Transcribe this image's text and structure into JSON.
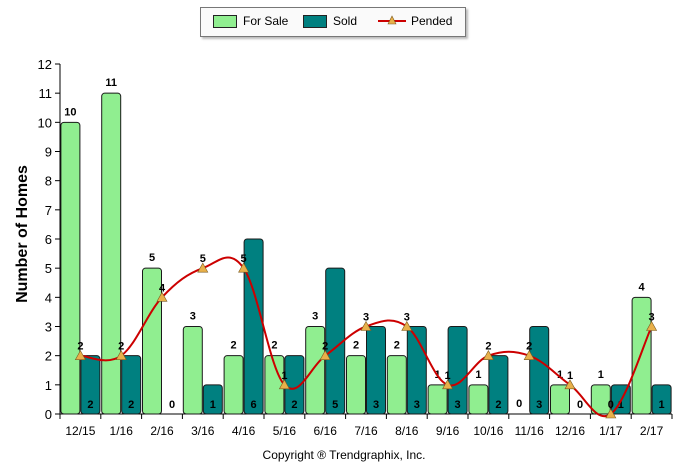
{
  "chart_data": {
    "type": "bar",
    "title": "",
    "xlabel": "",
    "ylabel": "Number of Homes",
    "ylim": [
      0,
      12
    ],
    "yticks": [
      0,
      1,
      2,
      3,
      4,
      5,
      6,
      7,
      8,
      9,
      10,
      11,
      12
    ],
    "categories": [
      "12/15",
      "1/16",
      "2/16",
      "3/16",
      "4/16",
      "5/16",
      "6/16",
      "7/16",
      "8/16",
      "9/16",
      "10/16",
      "11/16",
      "12/16",
      "1/17",
      "2/17"
    ],
    "series": [
      {
        "name": "For Sale",
        "type": "bar",
        "color": "#90ee90",
        "values": [
          10,
          11,
          5,
          3,
          2,
          2,
          3,
          2,
          2,
          1,
          1,
          0,
          1,
          1,
          4
        ]
      },
      {
        "name": "Sold",
        "type": "bar",
        "color": "#008080",
        "values": [
          2,
          2,
          0,
          1,
          6,
          2,
          5,
          3,
          3,
          3,
          2,
          3,
          0,
          1,
          1
        ]
      },
      {
        "name": "Pended",
        "type": "line",
        "color": "#cc0000",
        "marker_color": "#e8b04a",
        "values": [
          2,
          2,
          4,
          5,
          5,
          1,
          2,
          3,
          3,
          1,
          2,
          2,
          1,
          0,
          3
        ]
      }
    ],
    "legend_position": "top-center",
    "grid": false
  },
  "copyright": "Copyright ® Trendgraphix, Inc."
}
